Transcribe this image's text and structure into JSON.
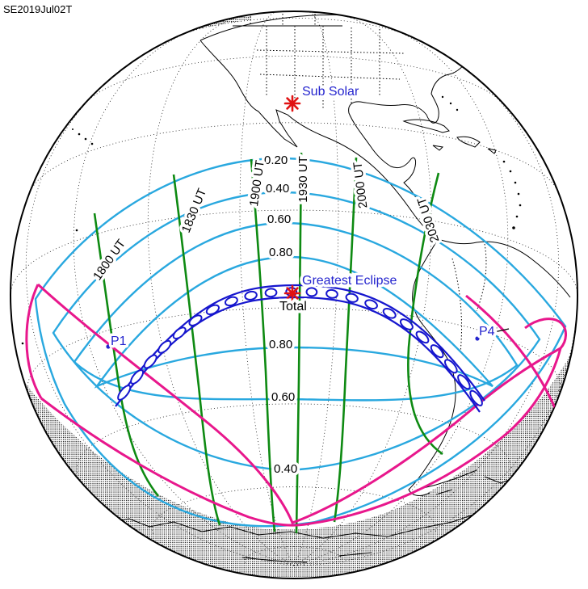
{
  "title": "SE2019Jul02T",
  "map": {
    "labels": {
      "sub_solar": "Sub Solar",
      "greatest_eclipse": "Greatest Eclipse",
      "total": "Total",
      "p1": "P1",
      "p4": "P4"
    },
    "magnitude_contours": {
      "north": [
        "0.20",
        "0.40",
        "0.60",
        "0.80"
      ],
      "south": [
        "0.80",
        "0.60",
        "0.40"
      ]
    },
    "time_contours": [
      "1800 UT",
      "1830 UT",
      "1900 UT",
      "1930 UT",
      "2000 UT",
      "2030 UT"
    ]
  },
  "colors": {
    "magnitude_contour": "#29A8DF",
    "time_contour": "#0E8A12",
    "penumbra_limit": "#E8178C",
    "umbra_path": "#1616CE",
    "label_blue": "#2424CE",
    "marker_red": "#E01212",
    "coastline": "#000000"
  }
}
